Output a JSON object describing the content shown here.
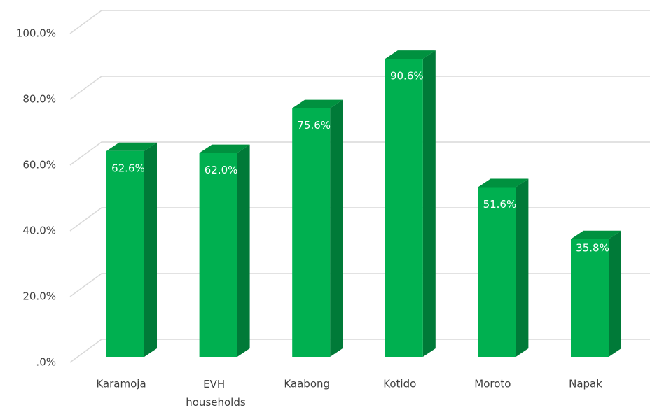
{
  "chart_data": {
    "type": "bar3d",
    "categories": [
      "Karamoja",
      "EVH households",
      "Kaabong",
      "Kotido",
      "Moroto",
      "Napak"
    ],
    "values": [
      62.6,
      62.0,
      75.6,
      90.6,
      51.6,
      35.8
    ],
    "value_labels": [
      "62.6%",
      "62.0%",
      "75.6%",
      "90.6%",
      "51.6%",
      "35.8%"
    ],
    "color": "#00b050",
    "ylim": [
      0,
      100
    ],
    "yticks": [
      {
        "value": 0,
        "label": ".0%"
      },
      {
        "value": 20,
        "label": "20.0%"
      },
      {
        "value": 40,
        "label": "40.0%"
      },
      {
        "value": 60,
        "label": "60.0%"
      },
      {
        "value": 80,
        "label": "80.0%"
      },
      {
        "value": 100,
        "label": "100.0%"
      }
    ],
    "grid": true
  }
}
